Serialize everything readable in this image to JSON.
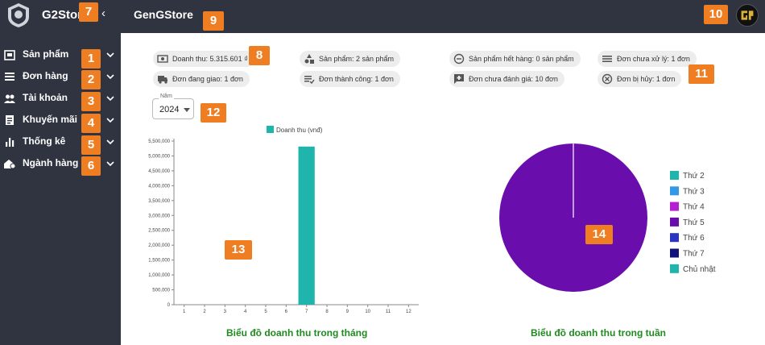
{
  "app": {
    "logo_text": "G2Store",
    "collapse_glyph": "‹",
    "header_title": "GenGStore"
  },
  "sidebar": {
    "items": [
      {
        "label": "Sản phẩm",
        "icon": "product-box-icon"
      },
      {
        "label": "Đơn hàng",
        "icon": "list-icon"
      },
      {
        "label": "Tài khoản",
        "icon": "users-icon"
      },
      {
        "label": "Khuyến mãi",
        "icon": "promo-doc-icon"
      },
      {
        "label": "Thống kê",
        "icon": "bar-chart-icon"
      },
      {
        "label": "Ngành hàng",
        "icon": "category-icon"
      }
    ]
  },
  "stats": {
    "revenue": "Doanh thu: 5.315.601 ₫",
    "products": "Sản phẩm: 2 sản phẩm",
    "out_of_stock": "Sản phẩm hết hàng: 0 sản phẩm",
    "unprocessed": "Đơn chưa xử lý: 1 đơn",
    "shipping": "Đơn đang giao: 1 đơn",
    "success": "Đơn thành công: 1 đơn",
    "unrated": "Đơn chưa đánh giá: 10 đơn",
    "cancelled": "Đơn bị hủy: 1 đơn"
  },
  "year_filter": {
    "label": "Năm",
    "value": "2024"
  },
  "badges": [
    "1",
    "2",
    "3",
    "4",
    "5",
    "6",
    "7",
    "8",
    "9",
    "10",
    "11",
    "12",
    "13",
    "14"
  ],
  "colors": {
    "sidebar_bg": "#2f3440",
    "badge": "#ef7d22",
    "bar": "#1fb5ad",
    "pie_main": "#6a0dad",
    "title_green": "#1f8a1f"
  },
  "chart_data": [
    {
      "type": "bar",
      "title": "Biểu đồ doanh thu trong tháng",
      "legend": "Doanh thu (vnđ)",
      "categories": [
        "1",
        "2",
        "3",
        "4",
        "5",
        "6",
        "7",
        "8",
        "9",
        "10",
        "11",
        "12"
      ],
      "values": [
        0,
        0,
        0,
        0,
        0,
        0,
        5315601,
        0,
        0,
        0,
        0,
        0
      ],
      "ylim": [
        0,
        5500000
      ],
      "yticks": [
        "0",
        "500,000",
        "1,000,000",
        "1,500,000",
        "2,000,000",
        "2,500,000",
        "3,000,000",
        "3,500,000",
        "4,000,000",
        "4,500,000",
        "5,000,000",
        "5,500,000"
      ],
      "color": "#1fb5ad"
    },
    {
      "type": "pie",
      "title": "Biểu đồ doanh thu trong tuần",
      "labels": [
        "Thứ 2",
        "Thứ 3",
        "Thứ 4",
        "Thứ 5",
        "Thứ 6",
        "Thứ 7",
        "Chủ nhật"
      ],
      "values": [
        0,
        0,
        0,
        100,
        0,
        0,
        0
      ],
      "colors": [
        "#1fb5ad",
        "#3399e6",
        "#b31fd1",
        "#6a0dad",
        "#2a35c2",
        "#10107a",
        "#1fb5ad"
      ]
    }
  ]
}
